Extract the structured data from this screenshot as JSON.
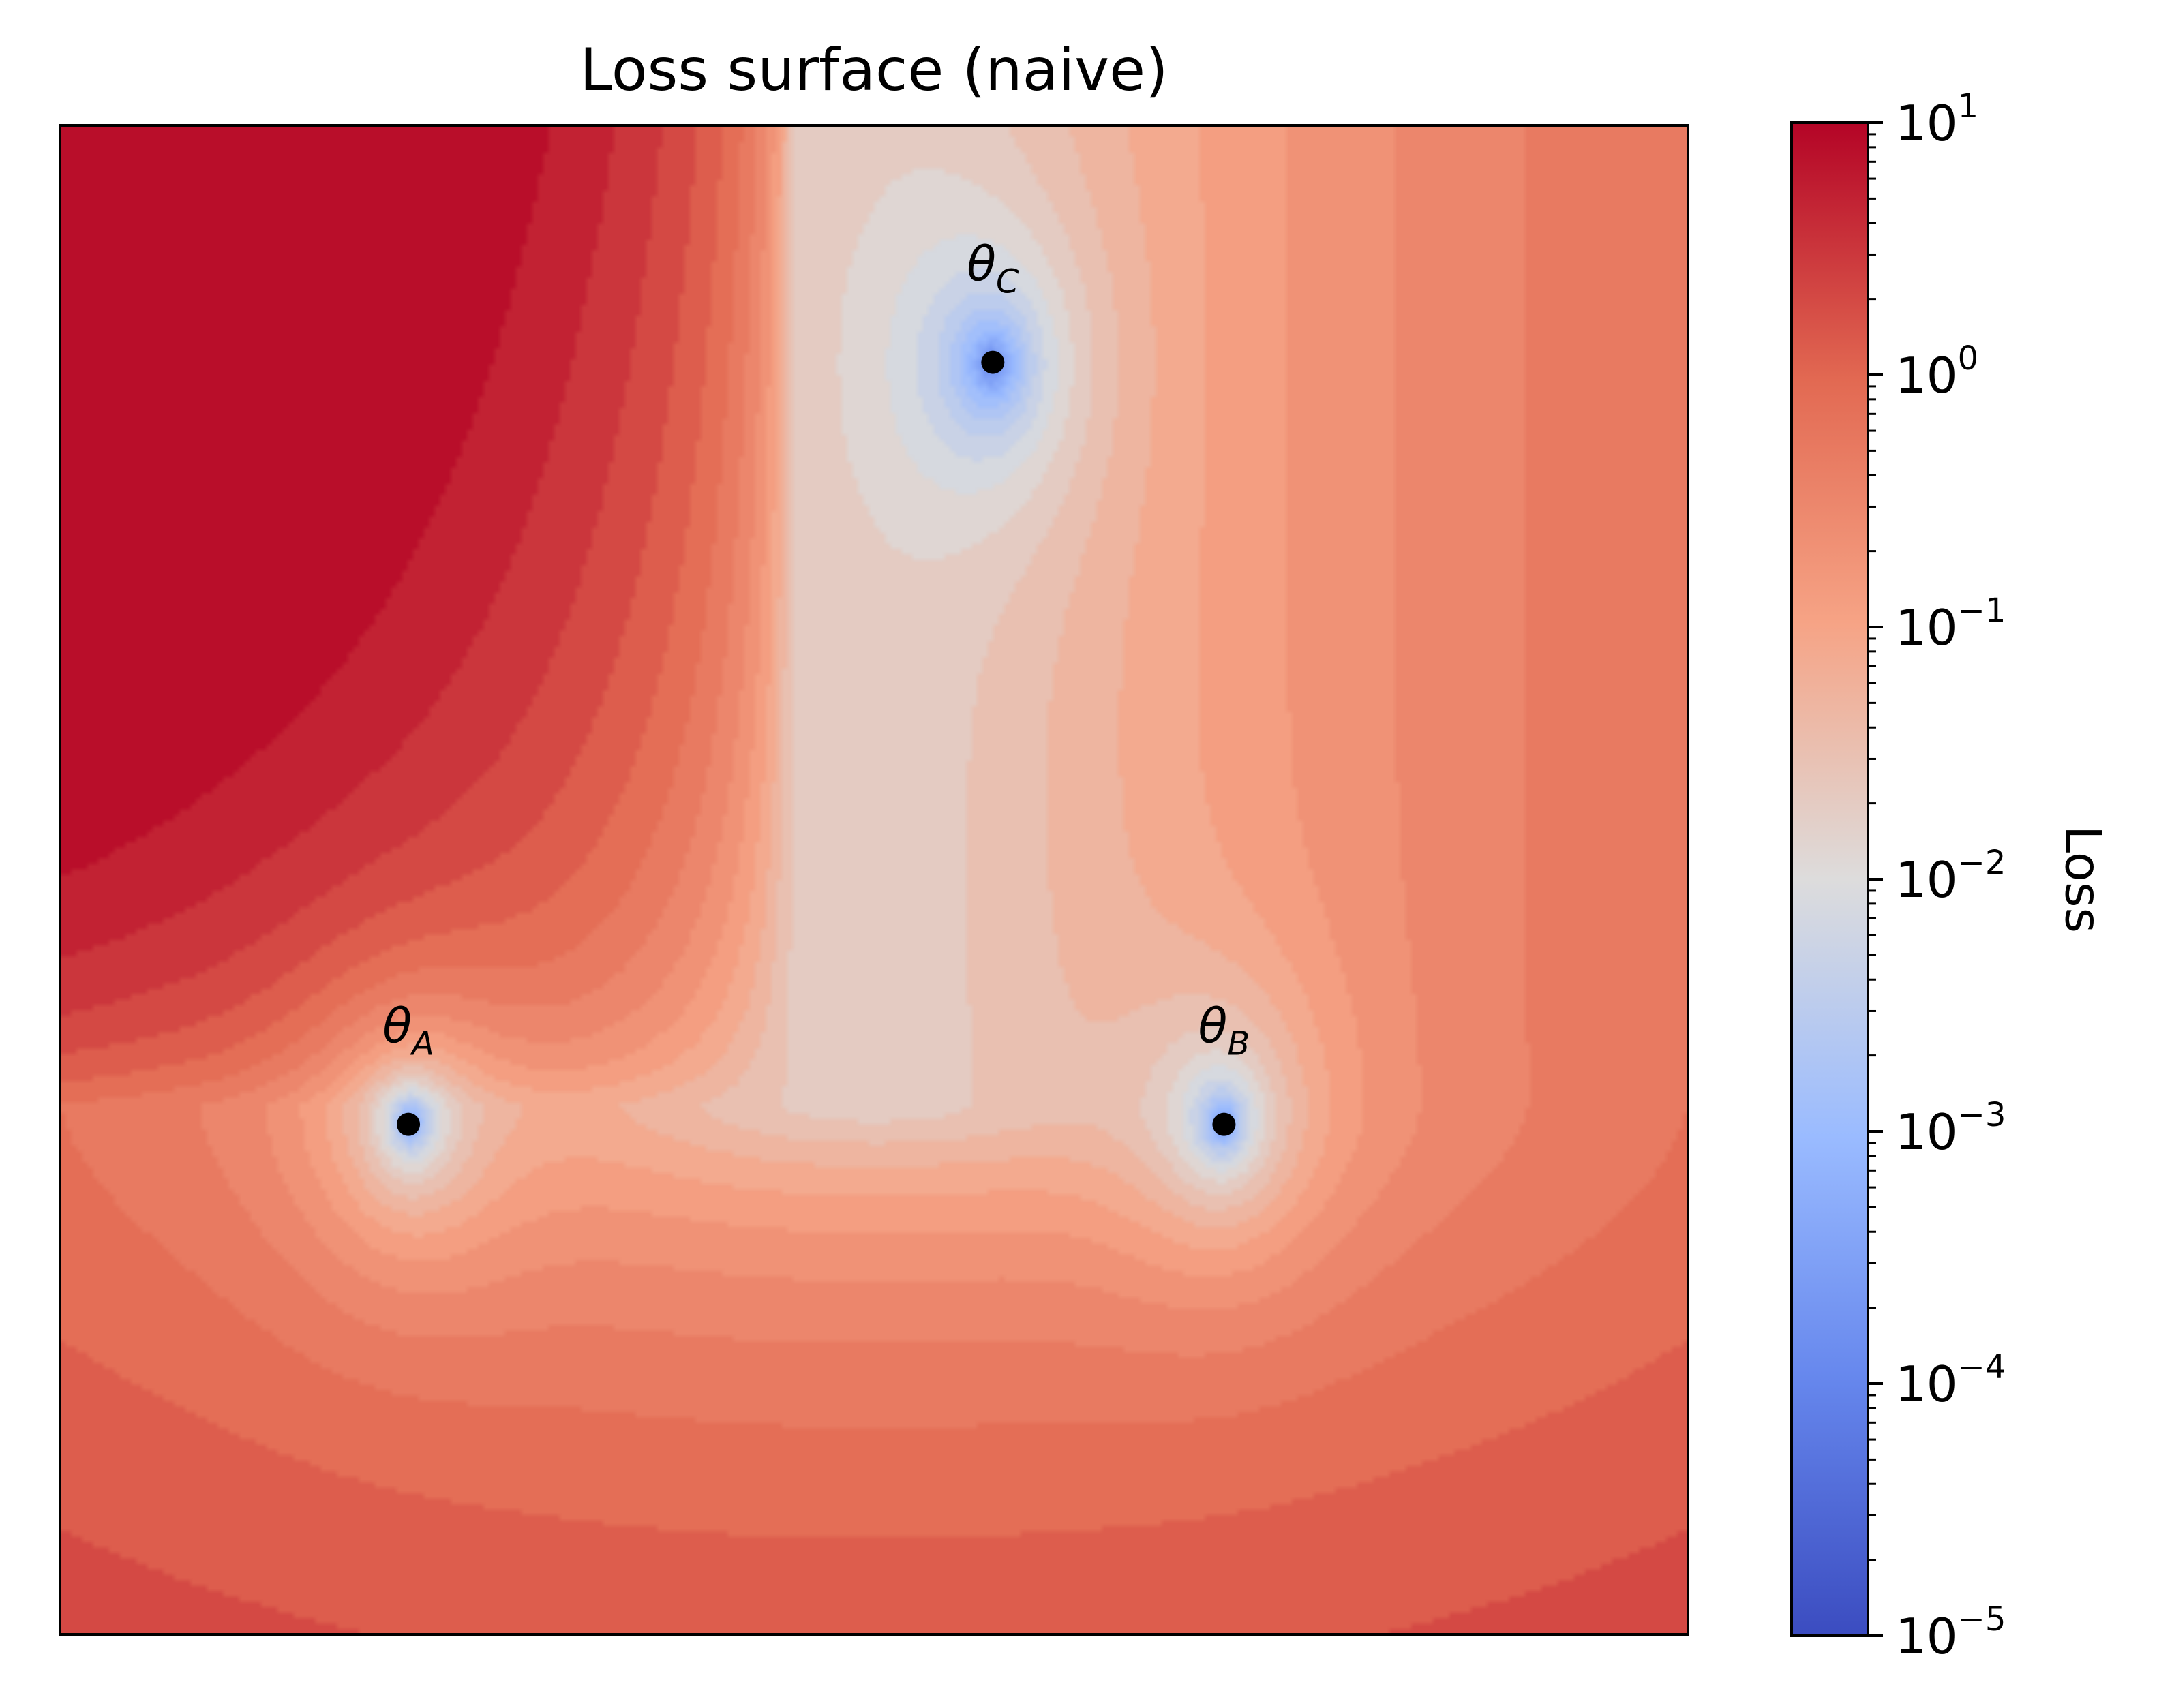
{
  "chart_data": {
    "type": "heatmap",
    "subtype": "filled-contour",
    "title": "Loss surface (naive)",
    "xlabel": "",
    "ylabel": "",
    "x_ticks": "none",
    "y_ticks": "none",
    "grid": false,
    "colormap": "coolwarm",
    "colorbar": {
      "label": "Loss",
      "scale": "log",
      "range": [
        1e-05,
        10
      ],
      "ticks": [
        {
          "base": "10",
          "exp": "1"
        },
        {
          "base": "10",
          "exp": "0"
        },
        {
          "base": "10",
          "exp": "−1"
        },
        {
          "base": "10",
          "exp": "−2"
        },
        {
          "base": "10",
          "exp": "−3"
        },
        {
          "base": "10",
          "exp": "−4"
        },
        {
          "base": "10",
          "exp": "−5"
        }
      ]
    },
    "points": [
      {
        "symbol": "θ",
        "sub": "A",
        "x": 0.214,
        "y": 0.338,
        "loss": 0.0001
      },
      {
        "symbol": "θ",
        "sub": "B",
        "x": 0.715,
        "y": 0.338,
        "loss": 0.0001
      },
      {
        "symbol": "θ",
        "sub": "C",
        "x": 0.573,
        "y": 0.843,
        "loss": 0.0001
      }
    ]
  }
}
